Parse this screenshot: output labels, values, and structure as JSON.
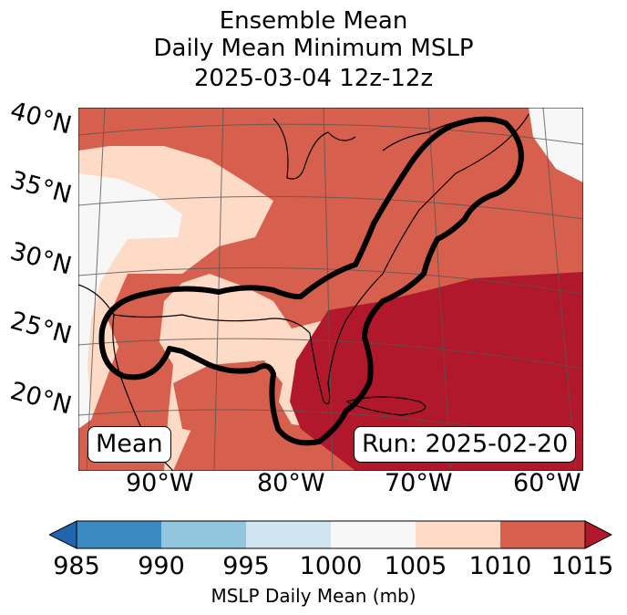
{
  "title": {
    "line1": "Ensemble Mean",
    "line2": "Daily Mean Minimum MSLP",
    "line3": "2025-03-04 12z-12z"
  },
  "map": {
    "lat_labels": [
      "40°N",
      "35°N",
      "30°N",
      "25°N",
      "20°N"
    ],
    "lon_labels": [
      "90°W",
      "80°W",
      "70°W",
      "60°W"
    ],
    "box_left": "Mean",
    "box_right": "Run: 2025-02-20",
    "contour_color": "#000000"
  },
  "colorbar": {
    "ticks": [
      "985",
      "990",
      "995",
      "1000",
      "1005",
      "1010",
      "1015"
    ],
    "label": "MSLP Daily Mean (mb)",
    "colors": [
      "#2166ac",
      "#3a89c0",
      "#92c5de",
      "#d1e5f0",
      "#f7f7f7",
      "#fddbc7",
      "#d6604d",
      "#b2182b"
    ]
  }
}
